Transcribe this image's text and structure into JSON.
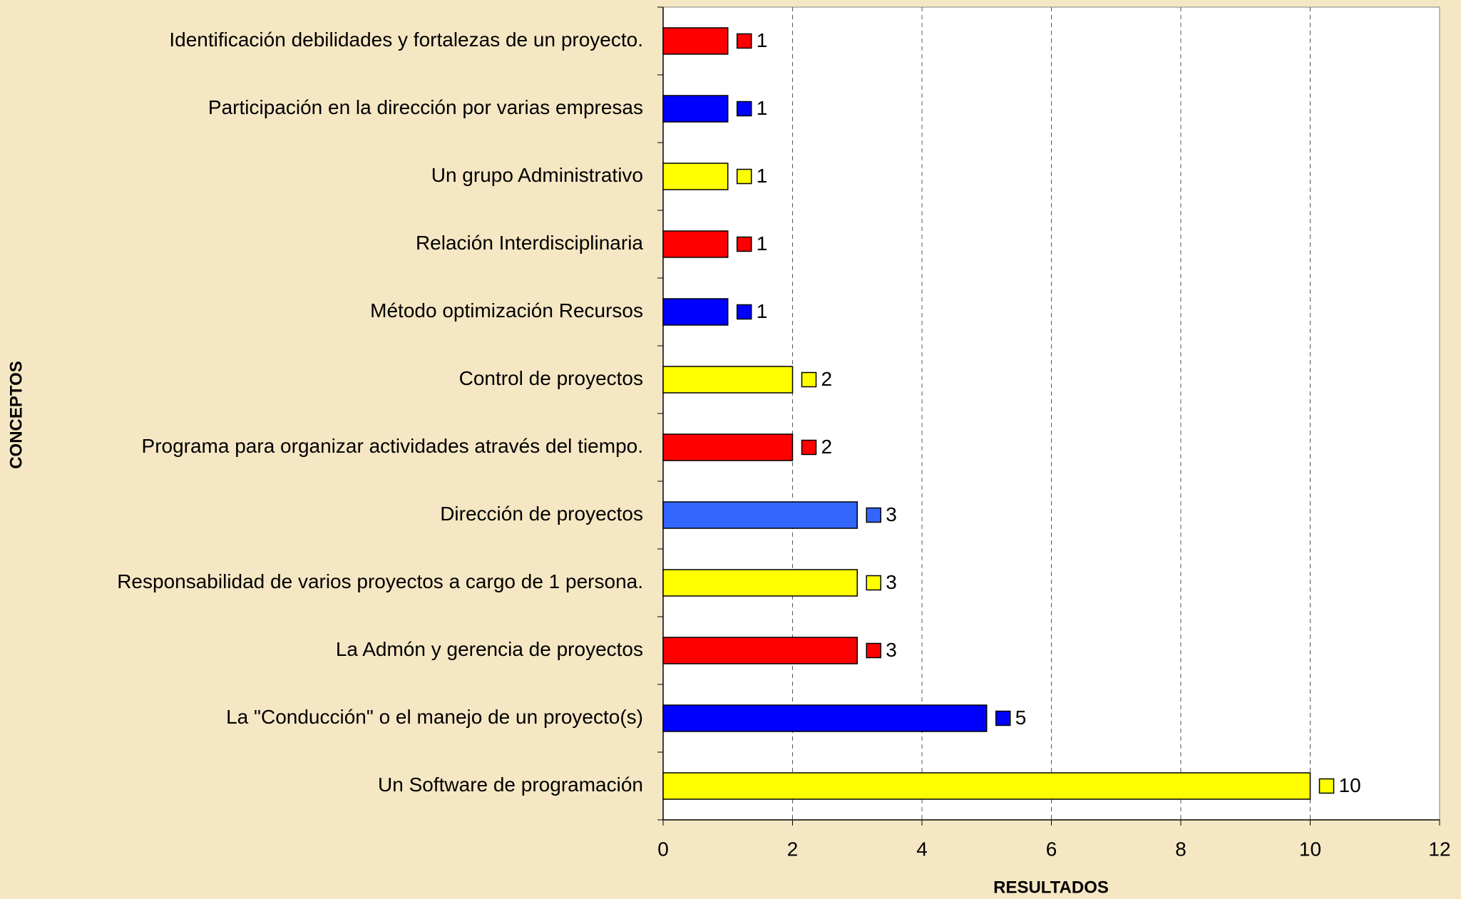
{
  "chart_data": {
    "type": "barh",
    "categories": [
      "Identificación debilidades y fortalezas de un proyecto.",
      "Participación en la dirección por varias empresas",
      "Un grupo Administrativo",
      "Relación Interdisciplinaria",
      "Método optimización Recursos",
      "Control de proyectos",
      "Programa para organizar actividades através del tiempo.",
      "Dirección de proyectos",
      "Responsabilidad de varios proyectos a cargo de 1 persona.",
      "La Admón y gerencia de proyectos",
      "La \"Conducción\" o el manejo de un proyecto(s)",
      "Un Software de programación"
    ],
    "values": [
      1,
      1,
      1,
      1,
      1,
      2,
      2,
      3,
      3,
      3,
      5,
      10
    ],
    "colors": [
      "#ff0000",
      "#0000ff",
      "#ffff00",
      "#ff0000",
      "#0000ff",
      "#ffff00",
      "#ff0000",
      "#3366ff",
      "#ffff00",
      "#ff0000",
      "#0000ff",
      "#ffff00"
    ],
    "xlabel": "RESULTADOS",
    "ylabel": "CONCEPTOS",
    "xlim": [
      0,
      12
    ],
    "xticks": [
      0,
      2,
      4,
      6,
      8,
      10,
      12
    ],
    "grid": true
  }
}
